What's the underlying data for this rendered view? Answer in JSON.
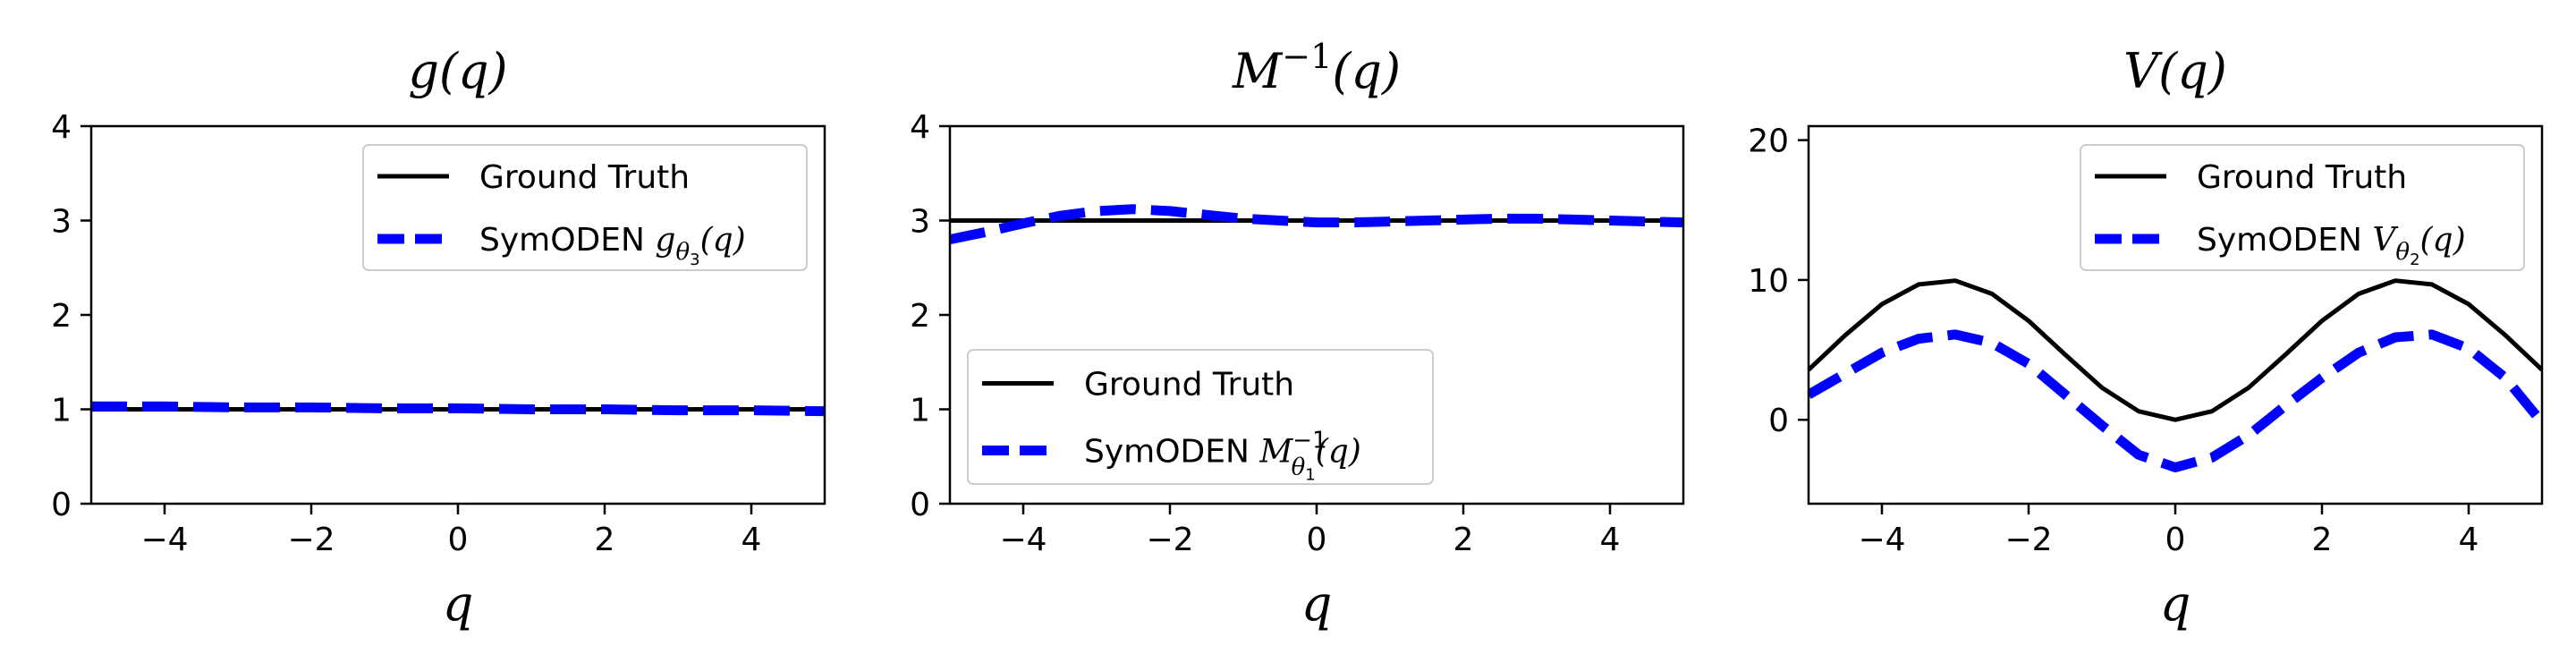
{
  "chart_data": [
    {
      "type": "line",
      "title": "g(q)",
      "xlabel": "q",
      "ylabel": "",
      "xlim": [
        -5,
        5
      ],
      "ylim": [
        0,
        4
      ],
      "xticks": [
        -4,
        -2,
        0,
        2,
        4
      ],
      "yticks": [
        0,
        1,
        2,
        3,
        4
      ],
      "legend_placement": "top-right",
      "series": [
        {
          "name": "Ground Truth",
          "color": "#000000",
          "style": "solid",
          "x": [
            -5,
            5
          ],
          "y": [
            1,
            1
          ]
        },
        {
          "name": "SymODEN g_{θ3}(q)",
          "legend_text": "SymODEN ",
          "legend_math": {
            "base": "g",
            "sub": "θ",
            "subsub": "3",
            "sup": "",
            "arg": "(q)"
          },
          "color": "#0000ff",
          "style": "dashed",
          "x": [
            -5,
            -4,
            -3,
            -2,
            -1,
            0,
            1,
            2,
            3,
            4,
            5
          ],
          "y": [
            1.03,
            1.03,
            1.02,
            1.02,
            1.01,
            1.01,
            1.0,
            1.0,
            0.99,
            0.99,
            0.98
          ]
        }
      ]
    },
    {
      "type": "line",
      "title": "M^{-1}(q)",
      "xlabel": "q",
      "ylabel": "",
      "xlim": [
        -5,
        5
      ],
      "ylim": [
        0,
        4
      ],
      "xticks": [
        -4,
        -2,
        0,
        2,
        4
      ],
      "yticks": [
        0,
        1,
        2,
        3,
        4
      ],
      "legend_placement": "lower-left",
      "series": [
        {
          "name": "Ground Truth",
          "color": "#000000",
          "style": "solid",
          "x": [
            -5,
            5
          ],
          "y": [
            3,
            3
          ]
        },
        {
          "name": "SymODEN M^{-1}_{θ1}(q)",
          "legend_text": "SymODEN ",
          "legend_math": {
            "base": "M",
            "sub": "θ",
            "subsub": "1",
            "sup": "−1",
            "arg": "(q)"
          },
          "color": "#0000ff",
          "style": "dashed",
          "x": [
            -5,
            -4.5,
            -4,
            -3.5,
            -3,
            -2.5,
            -2,
            -1.5,
            -1,
            -0.5,
            0,
            0.5,
            1,
            1.5,
            2,
            2.5,
            3,
            3.5,
            4,
            4.5,
            5
          ],
          "y": [
            2.8,
            2.88,
            2.97,
            3.05,
            3.1,
            3.12,
            3.1,
            3.06,
            3.02,
            3.0,
            2.98,
            2.98,
            2.99,
            3.0,
            3.01,
            3.02,
            3.02,
            3.01,
            3.0,
            2.99,
            2.98
          ]
        }
      ]
    },
    {
      "type": "line",
      "title": "V(q)",
      "xlabel": "q",
      "ylabel": "",
      "xlim": [
        -5,
        5
      ],
      "ylim": [
        -6,
        21
      ],
      "xticks": [
        -4,
        -2,
        0,
        2,
        4
      ],
      "yticks": [
        0,
        10,
        20
      ],
      "legend_placement": "top-right",
      "series": [
        {
          "name": "Ground Truth",
          "color": "#000000",
          "style": "solid",
          "x": [
            -5,
            -4.5,
            -4,
            -3.5,
            -3,
            -2.5,
            -2,
            -1.5,
            -1,
            -0.5,
            0,
            0.5,
            1,
            1.5,
            2,
            2.5,
            3,
            3.5,
            4,
            4.5,
            5
          ],
          "y": [
            3.58,
            6.05,
            8.27,
            9.68,
            9.95,
            9.01,
            7.08,
            4.65,
            2.3,
            0.61,
            0.0,
            0.61,
            2.3,
            4.65,
            7.08,
            9.01,
            9.95,
            9.68,
            8.27,
            6.05,
            3.58
          ]
        },
        {
          "name": "SymODEN V_{θ2}(q)",
          "legend_text": "SymODEN ",
          "legend_math": {
            "base": "V",
            "sub": "θ",
            "subsub": "2",
            "sup": "",
            "arg": "(q)"
          },
          "color": "#0000ff",
          "style": "dashed",
          "x": [
            -5,
            -4.5,
            -4,
            -3.5,
            -3,
            -2.5,
            -2,
            -1.5,
            -1,
            -0.5,
            0,
            0.5,
            1,
            1.5,
            2,
            2.5,
            3,
            3.5,
            4,
            4.5,
            5
          ],
          "y": [
            1.8,
            3.3,
            4.8,
            5.8,
            6.1,
            5.5,
            4.0,
            1.8,
            -0.4,
            -2.5,
            -3.4,
            -2.7,
            -1.1,
            1.0,
            3.0,
            4.8,
            5.9,
            6.1,
            5.1,
            3.0,
            -0.2
          ]
        }
      ]
    }
  ]
}
